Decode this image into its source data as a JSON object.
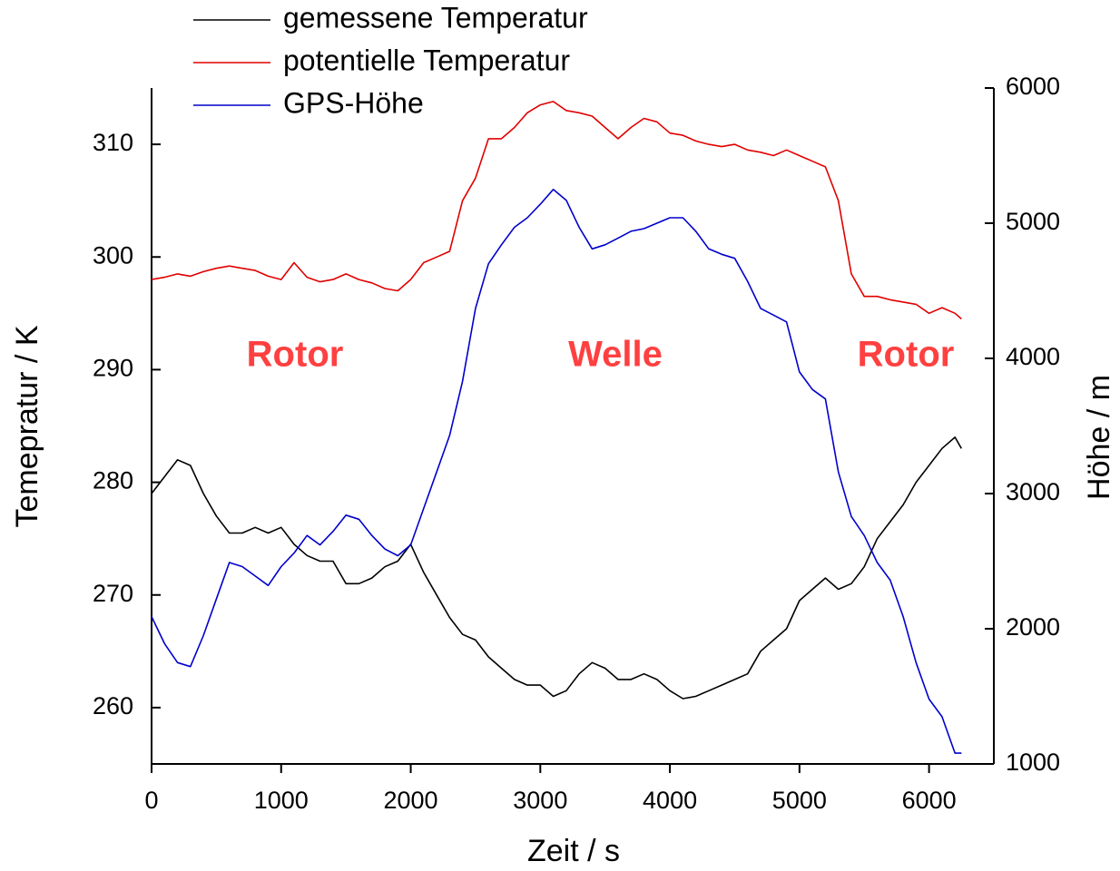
{
  "chart_data": {
    "type": "line",
    "xlabel": "Zeit / s",
    "ylabel": "Temepratur / K",
    "y2label": "Höhe / m",
    "x": [
      0,
      100,
      200,
      300,
      400,
      500,
      600,
      700,
      800,
      900,
      1000,
      1100,
      1200,
      1300,
      1400,
      1500,
      1600,
      1700,
      1800,
      1900,
      2000,
      2100,
      2200,
      2300,
      2400,
      2500,
      2600,
      2700,
      2800,
      2900,
      3000,
      3100,
      3200,
      3300,
      3400,
      3500,
      3600,
      3700,
      3800,
      3900,
      4000,
      4100,
      4200,
      4300,
      4400,
      4500,
      4600,
      4700,
      4800,
      4900,
      5000,
      5100,
      5200,
      5300,
      5400,
      5500,
      5600,
      5700,
      5800,
      5900,
      6000,
      6100,
      6200,
      6250
    ],
    "series": [
      {
        "name": "gemessene Temperatur",
        "color": "#000000",
        "axis": "y",
        "values": [
          279,
          280.5,
          282,
          281.5,
          279,
          277,
          275.5,
          275.5,
          276,
          275.5,
          276,
          274.5,
          273.5,
          273,
          273,
          271,
          271,
          271.5,
          272.5,
          273,
          274.5,
          272,
          270,
          268,
          266.5,
          266,
          264.5,
          263.5,
          262.5,
          262,
          262,
          261,
          261.5,
          263,
          264,
          263.5,
          262.5,
          262.5,
          263,
          262.5,
          261.5,
          260.8,
          261,
          261.5,
          262,
          262.5,
          263,
          265,
          266,
          267,
          269.5,
          270.5,
          271.5,
          270.5,
          271,
          272.5,
          275,
          276.5,
          278,
          280,
          281.5,
          283,
          284,
          283
        ]
      },
      {
        "name": "potentielle Temperatur",
        "color": "#e00000",
        "axis": "y",
        "values": [
          298,
          298.2,
          298.5,
          298.3,
          298.7,
          299,
          299.2,
          299,
          298.8,
          298.3,
          298,
          299.5,
          298.2,
          297.8,
          298,
          298.5,
          298,
          297.7,
          297.2,
          297,
          298,
          299.5,
          300,
          300.5,
          305,
          307,
          310.5,
          310.5,
          311.5,
          312.8,
          313.5,
          313.8,
          313,
          312.8,
          312.5,
          311.5,
          310.5,
          311.5,
          312.3,
          312,
          311,
          310.8,
          310.3,
          310,
          309.8,
          310,
          309.5,
          309.3,
          309,
          309.5,
          309,
          308.5,
          308,
          305,
          298.5,
          296.5,
          296.5,
          296.2,
          296,
          295.8,
          295,
          295.5,
          295,
          294.5
        ]
      },
      {
        "name": "GPS-Höhe",
        "color": "#0000cc",
        "axis": "y2",
        "values": [
          2090,
          1890,
          1750,
          1720,
          1950,
          2220,
          2490,
          2460,
          2390,
          2320,
          2460,
          2560,
          2690,
          2620,
          2720,
          2840,
          2810,
          2690,
          2590,
          2540,
          2620,
          2890,
          3160,
          3430,
          3830,
          4370,
          4700,
          4840,
          4970,
          5040,
          5140,
          5250,
          5170,
          4970,
          4810,
          4840,
          4890,
          4940,
          4960,
          5000,
          5040,
          5040,
          4940,
          4810,
          4770,
          4740,
          4570,
          4370,
          4320,
          4270,
          3900,
          3770,
          3700,
          3160,
          2830,
          2690,
          2490,
          2360,
          2090,
          1750,
          1480,
          1350,
          1080,
          1080
        ]
      }
    ],
    "xlim": [
      0,
      6500
    ],
    "xticks": [
      0,
      1000,
      2000,
      3000,
      4000,
      5000,
      6000
    ],
    "ylim": [
      255,
      315
    ],
    "yticks": [
      260,
      270,
      280,
      290,
      300,
      310
    ],
    "y2lim": [
      1000,
      6000
    ],
    "y2ticks": [
      1000,
      2000,
      3000,
      4000,
      5000,
      6000
    ],
    "legend": "top-left",
    "annotations": [
      {
        "text": "Rotor",
        "color": "#ff4040"
      },
      {
        "text": "Welle",
        "color": "#ff4040"
      },
      {
        "text": "Rotor",
        "color": "#ff4040"
      }
    ]
  }
}
